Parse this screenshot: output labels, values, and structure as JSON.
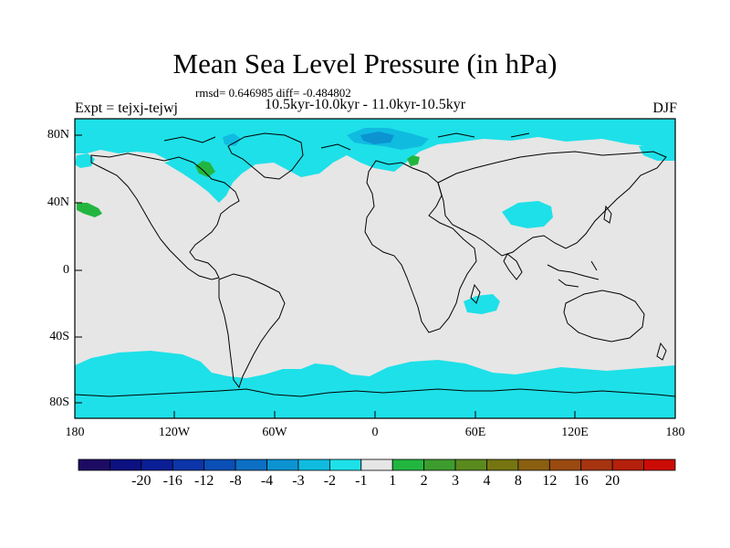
{
  "title": "Mean Sea Level Pressure (in hPa)",
  "stats_line": "rmsd= 0.646985 diff= -0.484802",
  "periods_line": "10.5kyr-10.0kyr - 11.0kyr-10.5kyr",
  "experiment": "Expt = tejxj-tejwj",
  "season": "DJF",
  "lat_labels": [
    "80N",
    "40N",
    "0",
    "40S",
    "80S"
  ],
  "lon_labels": [
    "180",
    "120W",
    "60W",
    "0",
    "60E",
    "120E",
    "180"
  ],
  "colorbar": {
    "colors": [
      "#1d0b63",
      "#0d1080",
      "#0a1e96",
      "#0b35a8",
      "#0a4fb5",
      "#0d6fc4",
      "#0c93d2",
      "#10bbe0",
      "#1ee0e8",
      "#e6e6e6",
      "#22b640",
      "#3d9c2e",
      "#5a8a1e",
      "#757512",
      "#8a6010",
      "#9a4a10",
      "#a63410",
      "#b4200c",
      "#cc0b06"
    ],
    "labels": [
      "-20",
      "-16",
      "-12",
      "-8",
      "-4",
      "-3",
      "-2",
      "-1",
      "1",
      "2",
      "3",
      "4",
      "8",
      "12",
      "16",
      "20"
    ]
  },
  "colors": {
    "land_neutral": "#e6e6e6",
    "anomaly_weak_negative": "#1ee0e8",
    "anomaly_moderate_negative": "#10bbe0",
    "anomaly_stronger_negative": "#0c93d2",
    "anomaly_positive": "#22b640"
  }
}
